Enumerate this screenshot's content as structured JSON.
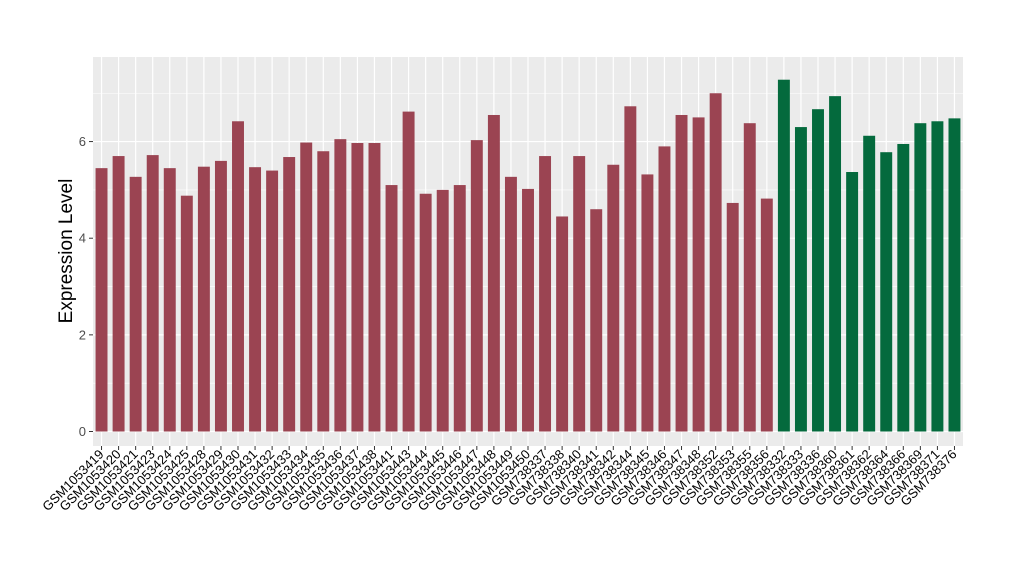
{
  "chart_data": {
    "type": "bar",
    "title": "",
    "xlabel": "",
    "ylabel": "Expression Level",
    "ylim": [
      -0.3,
      7.75
    ],
    "yticks": [
      0,
      2,
      4,
      6
    ],
    "grid": true,
    "legend": "none",
    "colors": {
      "group_a": "#9b4452",
      "group_b": "#046a3d",
      "panel": "#ebebeb",
      "grid": "#ffffff"
    },
    "categories": [
      "GSM1053419",
      "GSM1053420",
      "GSM1053421",
      "GSM1053423",
      "GSM1053424",
      "GSM1053425",
      "GSM1053428",
      "GSM1053429",
      "GSM1053430",
      "GSM1053431",
      "GSM1053432",
      "GSM1053433",
      "GSM1053434",
      "GSM1053435",
      "GSM1053436",
      "GSM1053437",
      "GSM1053438",
      "GSM1053441",
      "GSM1053443",
      "GSM1053444",
      "GSM1053445",
      "GSM1053446",
      "GSM1053447",
      "GSM1053448",
      "GSM1053449",
      "GSM1053450",
      "GSM738337",
      "GSM738338",
      "GSM738340",
      "GSM738341",
      "GSM738342",
      "GSM738344",
      "GSM738345",
      "GSM738346",
      "GSM738347",
      "GSM738348",
      "GSM738352",
      "GSM738353",
      "GSM738355",
      "GSM738356",
      "GSM738332",
      "GSM738333",
      "GSM738336",
      "GSM738360",
      "GSM738361",
      "GSM738362",
      "GSM738364",
      "GSM738366",
      "GSM738369",
      "GSM738371",
      "GSM738376"
    ],
    "values": [
      5.45,
      5.7,
      5.27,
      5.72,
      5.45,
      4.88,
      5.48,
      5.6,
      6.42,
      5.47,
      5.4,
      5.68,
      5.98,
      5.8,
      6.05,
      5.97,
      5.97,
      5.1,
      6.62,
      4.92,
      5.0,
      5.1,
      6.03,
      6.55,
      5.27,
      5.02,
      5.7,
      4.45,
      5.7,
      4.6,
      5.52,
      6.73,
      5.32,
      5.9,
      6.55,
      6.5,
      7.0,
      4.73,
      6.38,
      4.82,
      7.28,
      6.3,
      6.67,
      6.94,
      5.37,
      6.12,
      5.78,
      5.95,
      6.38,
      6.42,
      6.48
    ],
    "groups": [
      "a",
      "a",
      "a",
      "a",
      "a",
      "a",
      "a",
      "a",
      "a",
      "a",
      "a",
      "a",
      "a",
      "a",
      "a",
      "a",
      "a",
      "a",
      "a",
      "a",
      "a",
      "a",
      "a",
      "a",
      "a",
      "a",
      "a",
      "a",
      "a",
      "a",
      "a",
      "a",
      "a",
      "a",
      "a",
      "a",
      "a",
      "a",
      "a",
      "a",
      "b",
      "b",
      "b",
      "b",
      "b",
      "b",
      "b",
      "b",
      "b",
      "b",
      "b"
    ]
  }
}
